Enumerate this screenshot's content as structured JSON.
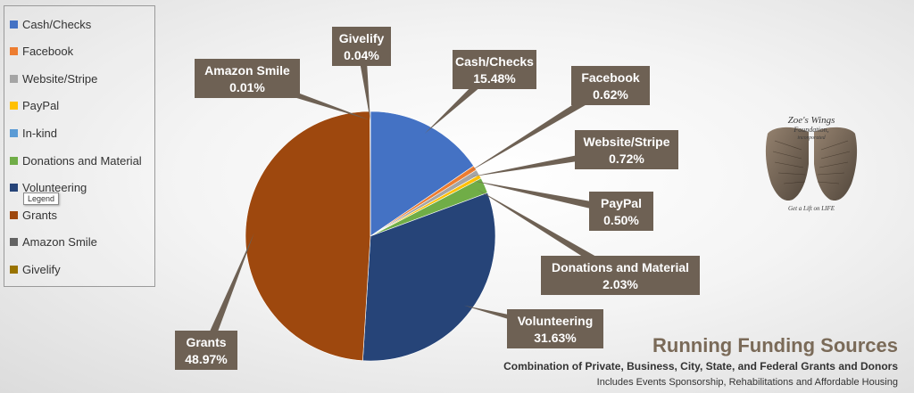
{
  "chart_data": {
    "type": "pie",
    "title": "Running Funding Sources",
    "subtitle": "Combination of Private, Business, City, State, and Federal Grants and Donors",
    "note": "Includes Events Sponsorship, Rehabilitations and Affordable Housing",
    "slices": [
      {
        "label": "Cash/Checks",
        "value": 15.48,
        "display": "15.48%",
        "color": "#4472c4"
      },
      {
        "label": "Facebook",
        "value": 0.62,
        "display": "0.62%",
        "color": "#ed7d31"
      },
      {
        "label": "Website/Stripe",
        "value": 0.72,
        "display": "0.72%",
        "color": "#a5a5a5"
      },
      {
        "label": "PayPal",
        "value": 0.5,
        "display": "0.50%",
        "color": "#ffc000"
      },
      {
        "label": "In-kind",
        "value": 0.0,
        "display": "",
        "color": "#5b9bd5"
      },
      {
        "label": "Donations and Material",
        "value": 2.03,
        "display": "2.03%",
        "color": "#70ad47"
      },
      {
        "label": "Volunteering",
        "value": 31.63,
        "display": "31.63%",
        "color": "#264478"
      },
      {
        "label": "Grants",
        "value": 48.97,
        "display": "48.97%",
        "color": "#9e480e"
      },
      {
        "label": "Amazon Smile",
        "value": 0.01,
        "display": "0.01%",
        "color": "#636363"
      },
      {
        "label": "Givelify",
        "value": 0.04,
        "display": "0.04%",
        "color": "#997300"
      }
    ],
    "legend_position": "left"
  },
  "legend_tooltip": "Legend",
  "logo": {
    "name": "Zoe's Wings",
    "line2": "Foundation,",
    "line3": "incorporated",
    "tagline": "Get a Lift on LIFE"
  },
  "callout_color": "#6e6154"
}
